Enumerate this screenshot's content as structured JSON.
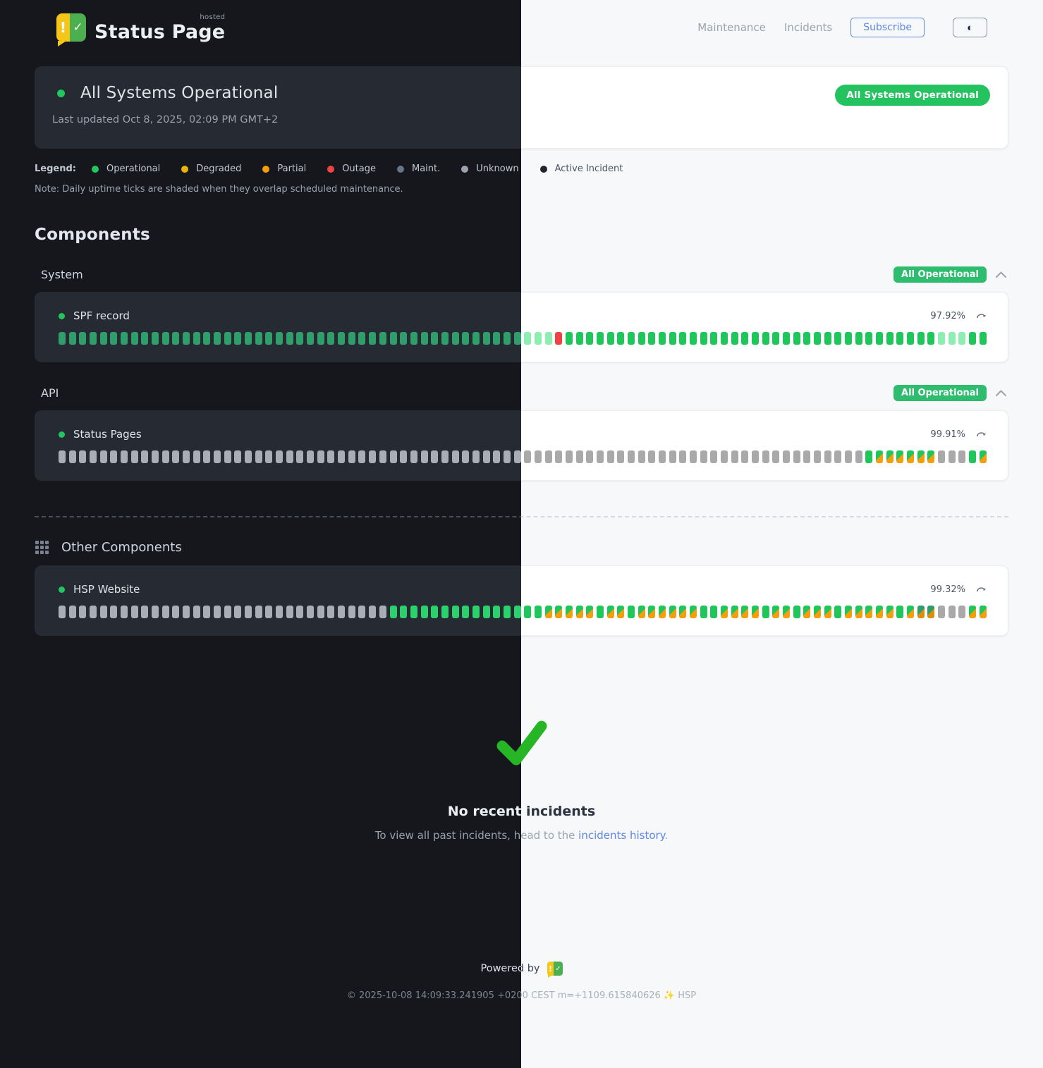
{
  "header": {
    "brand": "Status Page",
    "brand_sup": "hosted",
    "nav": [
      {
        "label": "Maintenance"
      },
      {
        "label": "Incidents"
      }
    ],
    "subscribe_label": "Subscribe",
    "theme_toggle_icon": "◐"
  },
  "banner": {
    "title": "All Systems Operational",
    "updated": "Last updated Oct 8, 2025, 02:09 PM GMT+2",
    "badge": "All Systems Operational",
    "badge_color": "#22c55e"
  },
  "legend": {
    "label": "Legend:",
    "items": [
      {
        "label": "Operational",
        "color": "#22c55e"
      },
      {
        "label": "Degraded",
        "color": "#eab308"
      },
      {
        "label": "Partial",
        "color": "#f59e0b"
      },
      {
        "label": "Outage",
        "color": "#ef4444"
      },
      {
        "label": "Maint.",
        "color": "#64748b"
      },
      {
        "label": "Unknown",
        "color": "#9ca3af"
      },
      {
        "label": "Active Incident",
        "color": "#2b2723"
      }
    ],
    "note": "Note: Daily uptime ticks are shaded when they overlap scheduled maintenance."
  },
  "components": {
    "heading": "Components",
    "tick_legend": {
      "o": "operational",
      "s": "operational-shaded",
      "x": "outage",
      "u": "unknown",
      "m": "operational-partial-mixed",
      "n": "operational-partial-shaded"
    },
    "status_colors": {
      "dark": {
        "operational": "#2bd16d",
        "operational_shaded": "#2f9e6b",
        "unknown": "#a9aeb6",
        "outage": "#ef4444",
        "partial": "#f59e0b"
      },
      "light": {
        "operational": "#1fc65a",
        "operational_shaded": "#8deeb2",
        "unknown": "#a9a9a9",
        "outage": "#f04444",
        "partial": "#f59e0b"
      }
    },
    "groups": [
      {
        "name": "System",
        "badge": "All Operational",
        "items": [
          {
            "name": "SPF record",
            "uptime": "97.92%",
            "ticks": "ssssssssssssssssssssssssssssssssssssssssssssssssxoooooooooooooooooooooooooooooooooooosssoo"
          }
        ]
      },
      {
        "name": "API",
        "badge": "All Operational",
        "items": [
          {
            "name": "Status Pages",
            "uptime": "99.91%",
            "ticks": "uuuuuuuuuuuuuuuuuuuuuuuuuuuuuuuuuuuuuuuuuuuuuuuuuuuuuuuuuuuuuuuuuuuuuuuuuuuuuuommmmmmuuuom"
          }
        ]
      }
    ],
    "other": {
      "heading": "Other Components",
      "items": [
        {
          "name": "HSP Website",
          "uptime": "99.32%",
          "ticks": "uuuuuuuuuuuuuuuuuuuuuuuuuuuuuuuuooooooooooooooommmmmommommmmmmoommmmommommmommmmmomnnuuumm"
        }
      ]
    }
  },
  "incidents": {
    "title": "No recent incidents",
    "text_before": "To view all past incidents, head to the ",
    "link": "incidents history",
    "text_after": "."
  },
  "footer": {
    "powered_by": "Powered by",
    "copyright": "© 2025-10-08 14:09:33.241905 +0200 CEST m=+1109.615840626 ✨ HSP"
  }
}
